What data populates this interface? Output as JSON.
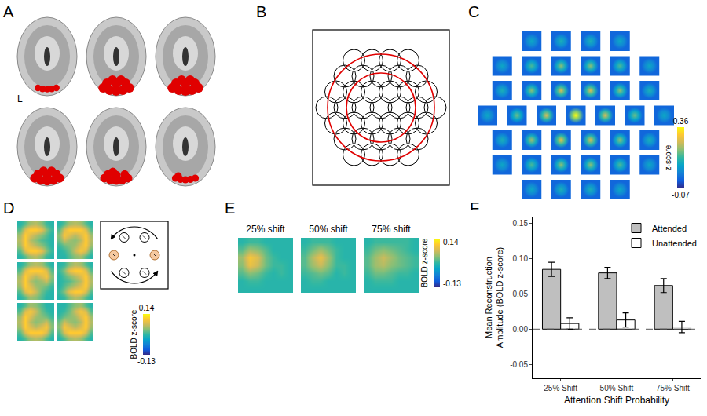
{
  "panel_labels": [
    "A",
    "B",
    "C",
    "D",
    "E",
    "F"
  ],
  "panel_a": {
    "side_label": "L"
  },
  "panel_c": {
    "tiles": [
      [
        0.1,
        0.12,
        0.12,
        0.1
      ],
      [
        0.1,
        0.16,
        0.2,
        0.2,
        0.16,
        0.1
      ],
      [
        0.12,
        0.2,
        0.26,
        0.26,
        0.2,
        0.12
      ],
      [
        0.1,
        0.18,
        0.26,
        0.36,
        0.26,
        0.18,
        0.1
      ],
      [
        0.12,
        0.22,
        0.28,
        0.26,
        0.2,
        0.12
      ],
      [
        0.1,
        0.16,
        0.2,
        0.2,
        0.16,
        0.1
      ],
      [
        0.1,
        0.12,
        0.12,
        0.1
      ]
    ],
    "surround": 0.0,
    "colorbar_label": "z-score",
    "colorbar_range": [
      -0.07,
      0.36
    ],
    "colorbar_ticks": [
      0.36,
      -0.07
    ]
  },
  "panel_d": {
    "maps": [
      [
        [
          0.0,
          0.02,
          0.05,
          0.06,
          0.04,
          0.01,
          0.0
        ],
        [
          0.02,
          0.08,
          0.11,
          0.11,
          0.09,
          0.04,
          0.01
        ],
        [
          0.05,
          0.11,
          0.08,
          0.06,
          0.04,
          0.02,
          0.0
        ],
        [
          0.06,
          0.11,
          0.06,
          0.04,
          0.02,
          0.01,
          0.0
        ],
        [
          0.05,
          0.11,
          0.08,
          0.06,
          0.04,
          0.02,
          0.0
        ],
        [
          0.02,
          0.08,
          0.11,
          0.11,
          0.09,
          0.04,
          0.01
        ],
        [
          0.0,
          0.02,
          0.05,
          0.06,
          0.04,
          0.01,
          0.0
        ]
      ],
      [
        [
          0.0,
          0.02,
          0.05,
          0.06,
          0.05,
          0.02,
          0.0
        ],
        [
          0.02,
          0.08,
          0.11,
          0.11,
          0.11,
          0.08,
          0.02
        ],
        [
          0.04,
          0.1,
          0.08,
          0.06,
          0.08,
          0.11,
          0.05
        ],
        [
          0.03,
          0.07,
          0.05,
          0.04,
          0.06,
          0.11,
          0.06
        ],
        [
          0.01,
          0.03,
          0.04,
          0.05,
          0.08,
          0.11,
          0.05
        ],
        [
          0.0,
          0.01,
          0.03,
          0.07,
          0.1,
          0.08,
          0.02
        ],
        [
          0.0,
          0.0,
          0.02,
          0.04,
          0.05,
          0.02,
          0.0
        ]
      ],
      [
        [
          0.0,
          0.02,
          0.05,
          0.06,
          0.05,
          0.02,
          0.0
        ],
        [
          0.02,
          0.08,
          0.11,
          0.11,
          0.11,
          0.08,
          0.02
        ],
        [
          0.05,
          0.11,
          0.08,
          0.06,
          0.08,
          0.1,
          0.04
        ],
        [
          0.06,
          0.11,
          0.06,
          0.04,
          0.05,
          0.07,
          0.03
        ],
        [
          0.05,
          0.11,
          0.08,
          0.05,
          0.04,
          0.03,
          0.01
        ],
        [
          0.02,
          0.08,
          0.1,
          0.07,
          0.03,
          0.01,
          0.0
        ],
        [
          0.0,
          0.02,
          0.05,
          0.04,
          0.02,
          0.0,
          0.0
        ]
      ],
      [
        [
          0.0,
          0.01,
          0.04,
          0.06,
          0.05,
          0.02,
          0.0
        ],
        [
          0.01,
          0.04,
          0.09,
          0.11,
          0.11,
          0.08,
          0.02
        ],
        [
          0.0,
          0.02,
          0.04,
          0.06,
          0.08,
          0.11,
          0.05
        ],
        [
          0.0,
          0.01,
          0.02,
          0.04,
          0.06,
          0.11,
          0.06
        ],
        [
          0.0,
          0.02,
          0.04,
          0.06,
          0.08,
          0.11,
          0.05
        ],
        [
          0.01,
          0.04,
          0.09,
          0.11,
          0.11,
          0.08,
          0.02
        ],
        [
          0.0,
          0.01,
          0.04,
          0.06,
          0.05,
          0.02,
          0.0
        ]
      ],
      [
        [
          0.0,
          0.02,
          0.05,
          0.04,
          0.02,
          0.0,
          0.0
        ],
        [
          0.02,
          0.08,
          0.1,
          0.07,
          0.03,
          0.01,
          0.0
        ],
        [
          0.05,
          0.11,
          0.08,
          0.05,
          0.04,
          0.03,
          0.01
        ],
        [
          0.06,
          0.11,
          0.06,
          0.04,
          0.05,
          0.07,
          0.03
        ],
        [
          0.05,
          0.11,
          0.08,
          0.06,
          0.08,
          0.1,
          0.04
        ],
        [
          0.02,
          0.08,
          0.11,
          0.11,
          0.11,
          0.08,
          0.02
        ],
        [
          0.0,
          0.02,
          0.05,
          0.06,
          0.05,
          0.02,
          0.0
        ]
      ],
      [
        [
          0.0,
          0.0,
          0.02,
          0.04,
          0.05,
          0.02,
          0.0
        ],
        [
          0.0,
          0.01,
          0.03,
          0.07,
          0.1,
          0.08,
          0.02
        ],
        [
          0.01,
          0.03,
          0.04,
          0.05,
          0.08,
          0.11,
          0.05
        ],
        [
          0.03,
          0.07,
          0.05,
          0.04,
          0.06,
          0.11,
          0.06
        ],
        [
          0.04,
          0.1,
          0.08,
          0.06,
          0.08,
          0.11,
          0.05
        ],
        [
          0.02,
          0.08,
          0.11,
          0.11,
          0.11,
          0.08,
          0.02
        ],
        [
          0.0,
          0.02,
          0.05,
          0.06,
          0.05,
          0.02,
          0.0
        ]
      ]
    ],
    "colorbar_label": "BOLD z-score",
    "colorbar_range": [
      -0.13,
      0.14
    ],
    "colorbar_ticks": [
      0.14,
      -0.13
    ]
  },
  "panel_e": {
    "titles": [
      "25% shift",
      "50% shift",
      "75% shift"
    ],
    "maps": [
      [
        [
          0.0,
          0.01,
          0.01,
          0.0,
          0.0,
          0.0,
          0.0
        ],
        [
          0.02,
          0.05,
          0.04,
          0.02,
          0.0,
          0.0,
          0.0
        ],
        [
          0.05,
          0.1,
          0.08,
          0.03,
          0.01,
          0.0,
          0.0
        ],
        [
          0.04,
          0.09,
          0.07,
          0.03,
          0.01,
          0.01,
          0.0
        ],
        [
          0.02,
          0.04,
          0.03,
          0.01,
          0.0,
          0.01,
          0.0
        ],
        [
          0.0,
          0.01,
          0.01,
          0.0,
          0.0,
          0.0,
          0.0
        ],
        [
          0.0,
          0.0,
          0.0,
          0.0,
          0.0,
          0.0,
          0.0
        ]
      ],
      [
        [
          0.0,
          0.01,
          0.01,
          0.01,
          0.0,
          0.0,
          0.0
        ],
        [
          0.01,
          0.03,
          0.05,
          0.03,
          0.01,
          0.0,
          0.0
        ],
        [
          0.02,
          0.06,
          0.09,
          0.05,
          0.01,
          0.0,
          0.0
        ],
        [
          0.02,
          0.05,
          0.07,
          0.04,
          0.01,
          0.01,
          0.0
        ],
        [
          0.01,
          0.02,
          0.03,
          0.02,
          0.0,
          0.01,
          0.0
        ],
        [
          0.0,
          0.01,
          0.01,
          0.0,
          0.0,
          0.0,
          0.0
        ],
        [
          0.0,
          0.0,
          0.0,
          0.0,
          0.0,
          0.0,
          0.0
        ]
      ],
      [
        [
          0.0,
          0.01,
          0.01,
          0.01,
          0.01,
          0.01,
          0.0
        ],
        [
          0.01,
          0.03,
          0.04,
          0.03,
          0.02,
          0.01,
          0.0
        ],
        [
          0.02,
          0.05,
          0.07,
          0.05,
          0.03,
          0.02,
          0.01
        ],
        [
          0.02,
          0.05,
          0.06,
          0.04,
          0.03,
          0.02,
          0.01
        ],
        [
          0.01,
          0.03,
          0.03,
          0.02,
          0.01,
          0.01,
          0.0
        ],
        [
          0.0,
          0.01,
          0.01,
          0.01,
          0.0,
          0.0,
          0.0
        ],
        [
          0.0,
          0.0,
          0.0,
          0.0,
          0.0,
          0.0,
          0.0
        ]
      ]
    ],
    "colorbar_label": "BOLD z-score",
    "colorbar_range": [
      -0.13,
      0.14
    ],
    "colorbar_ticks": [
      0.14,
      -0.13
    ]
  },
  "chart_data": {
    "type": "bar",
    "categories": [
      "25% Shift",
      "50% Shift",
      "75% Shift"
    ],
    "series": [
      {
        "name": "Attended",
        "color": "#bfbfbf",
        "values": [
          0.085,
          0.08,
          0.062
        ],
        "error": [
          0.01,
          0.008,
          0.01
        ]
      },
      {
        "name": "Unattended",
        "color": "#ffffff",
        "values": [
          0.008,
          0.013,
          0.003
        ],
        "error": [
          0.008,
          0.01,
          0.008
        ]
      }
    ],
    "xlabel": "Attention Shift Probability",
    "ylabel": "Mean Reconstruction Amplitude (BOLD z-score)",
    "ylim": [
      -0.07,
      0.16
    ],
    "yticks": [
      -0.05,
      {
        "value": 0,
        "label": "0.00"
      },
      0.05,
      {
        "value": 0.1,
        "label": "0.10"
      },
      0.15
    ],
    "grid": false,
    "legend": "upper right",
    "reference_line": {
      "value": 0,
      "line_style": "dashed"
    }
  }
}
